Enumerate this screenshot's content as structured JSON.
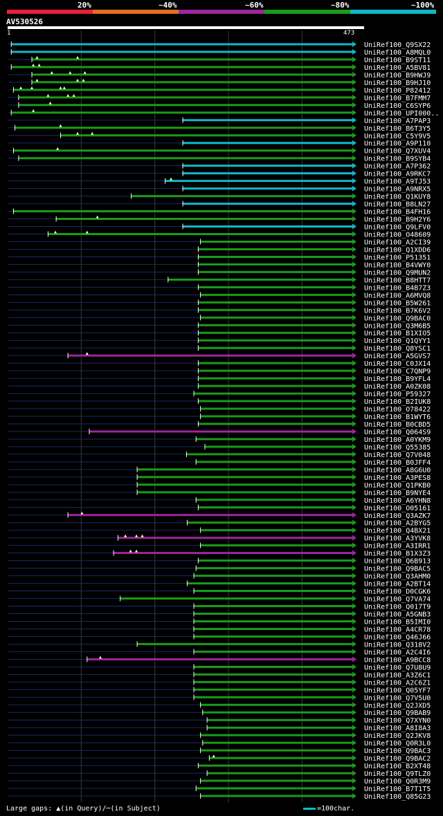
{
  "identity_scale": {
    "labels": [
      "20%",
      "~40%",
      "~60%",
      "~80%",
      "~100%"
    ],
    "colors": [
      "#e8203c",
      "#e07020",
      "#9c279c",
      "#1a9c1a",
      "#10b8c8"
    ]
  },
  "query": {
    "id": "AV530526",
    "start": "1",
    "end": "473",
    "length": 473
  },
  "legend": {
    "gaps_text": "Large gaps: ▲(in Query)/─(in Subject)",
    "scale_text": "=100char."
  },
  "chart_data": {
    "type": "alignment-map",
    "x_range": [
      1,
      473
    ],
    "hits": [
      {
        "name": "UniRef100_Q9SX22",
        "start": 5,
        "end": 473,
        "color": "#10b8c8",
        "gaps": []
      },
      {
        "name": "UniRef100_A8MQL0",
        "start": 5,
        "end": 473,
        "color": "#10b8c8",
        "gaps": []
      },
      {
        "name": "UniRef100_B9ST11",
        "start": 33,
        "end": 473,
        "color": "#1a9c1a",
        "gaps": [
          40,
          95
        ]
      },
      {
        "name": "UniRef100_A5BV81",
        "start": 5,
        "end": 473,
        "color": "#1a9c1a",
        "gaps": [
          35,
          43
        ]
      },
      {
        "name": "UniRef100_B9HWJ9",
        "start": 33,
        "end": 473,
        "color": "#1a9c1a",
        "gaps": [
          60,
          85,
          105
        ]
      },
      {
        "name": "UniRef100_B9HJ10",
        "start": 33,
        "end": 473,
        "color": "#1a9c1a",
        "gaps": [
          40,
          95,
          103
        ]
      },
      {
        "name": "UniRef100_P82412",
        "start": 8,
        "end": 473,
        "color": "#1a9c1a",
        "gaps": [
          18,
          33,
          72,
          77
        ]
      },
      {
        "name": "UniRef100_B7FMM7",
        "start": 15,
        "end": 473,
        "color": "#1a9c1a",
        "gaps": [
          55,
          82,
          90
        ]
      },
      {
        "name": "UniRef100_C6SYP6",
        "start": 15,
        "end": 473,
        "color": "#1a9c1a",
        "gaps": [
          58
        ]
      },
      {
        "name": "UniRef100_UPI000..",
        "start": 5,
        "end": 473,
        "color": "#1a9c1a",
        "gaps": [
          35
        ]
      },
      {
        "name": "UniRef100_A7PAP3",
        "start": 238,
        "end": 473,
        "color": "#10b8c8",
        "gaps": []
      },
      {
        "name": "UniRef100_B6T3Y5",
        "start": 10,
        "end": 473,
        "color": "#1a9c1a",
        "gaps": [
          72
        ]
      },
      {
        "name": "UniRef100_C5Y9V5",
        "start": 72,
        "end": 473,
        "color": "#1a9c1a",
        "gaps": [
          95,
          115
        ]
      },
      {
        "name": "UniRef100_A9P110",
        "start": 238,
        "end": 473,
        "color": "#10b8c8",
        "gaps": []
      },
      {
        "name": "UniRef100_Q7XUV4",
        "start": 8,
        "end": 473,
        "color": "#1a9c1a",
        "gaps": [
          68
        ]
      },
      {
        "name": "UniRef100_B9SYB4",
        "start": 15,
        "end": 473,
        "color": "#1a9c1a",
        "gaps": []
      },
      {
        "name": "UniRef100_A7P362",
        "start": 238,
        "end": 473,
        "color": "#10b8c8",
        "gaps": []
      },
      {
        "name": "UniRef100_A9RKC7",
        "start": 238,
        "end": 473,
        "color": "#10b8c8",
        "gaps": []
      },
      {
        "name": "UniRef100_A9TJ53",
        "start": 214,
        "end": 473,
        "color": "#10b8c8",
        "gaps": [
          222
        ]
      },
      {
        "name": "UniRef100_A9NRX5",
        "start": 238,
        "end": 473,
        "color": "#10b8c8",
        "gaps": []
      },
      {
        "name": "UniRef100_Q1KUY8",
        "start": 168,
        "end": 473,
        "color": "#1a9c1a",
        "gaps": []
      },
      {
        "name": "UniRef100_B8LN27",
        "start": 238,
        "end": 473,
        "color": "#10b8c8",
        "gaps": []
      },
      {
        "name": "UniRef100_B4FH16",
        "start": 8,
        "end": 473,
        "color": "#1a9c1a",
        "gaps": []
      },
      {
        "name": "UniRef100_B9H2Y6",
        "start": 66,
        "end": 473,
        "color": "#1a9c1a",
        "gaps": [
          122
        ]
      },
      {
        "name": "UniRef100_Q9LFV0",
        "start": 238,
        "end": 473,
        "color": "#10b8c8",
        "gaps": []
      },
      {
        "name": "UniRef100_O48609",
        "start": 55,
        "end": 473,
        "color": "#1a9c1a",
        "gaps": [
          65,
          108
        ]
      },
      {
        "name": "UniRef100_A2CI39",
        "start": 262,
        "end": 473,
        "color": "#1a9c1a",
        "gaps": []
      },
      {
        "name": "UniRef100_Q1XDD6",
        "start": 259,
        "end": 473,
        "color": "#1a9c1a",
        "gaps": []
      },
      {
        "name": "UniRef100_P51351",
        "start": 259,
        "end": 473,
        "color": "#1a9c1a",
        "gaps": []
      },
      {
        "name": "UniRef100_B4VWY0",
        "start": 259,
        "end": 473,
        "color": "#1a9c1a",
        "gaps": []
      },
      {
        "name": "UniRef100_Q9MUN2",
        "start": 259,
        "end": 473,
        "color": "#1a9c1a",
        "gaps": []
      },
      {
        "name": "UniRef100_B8HTT7",
        "start": 218,
        "end": 473,
        "color": "#1a9c1a",
        "gaps": []
      },
      {
        "name": "UniRef100_B4B7Z3",
        "start": 259,
        "end": 473,
        "color": "#1a9c1a",
        "gaps": []
      },
      {
        "name": "UniRef100_A6MVQ8",
        "start": 262,
        "end": 473,
        "color": "#1a9c1a",
        "gaps": []
      },
      {
        "name": "UniRef100_B5W261",
        "start": 259,
        "end": 473,
        "color": "#1a9c1a",
        "gaps": []
      },
      {
        "name": "UniRef100_B7K6V2",
        "start": 259,
        "end": 473,
        "color": "#1a9c1a",
        "gaps": []
      },
      {
        "name": "UniRef100_Q9BAC0",
        "start": 262,
        "end": 473,
        "color": "#1a9c1a",
        "gaps": []
      },
      {
        "name": "UniRef100_Q3M6B5",
        "start": 259,
        "end": 473,
        "color": "#1a9c1a",
        "gaps": []
      },
      {
        "name": "UniRef100_B1XIO5",
        "start": 259,
        "end": 473,
        "color": "#1a9c1a",
        "gaps": []
      },
      {
        "name": "UniRef100_Q1QYY1",
        "start": 259,
        "end": 473,
        "color": "#1a9c1a",
        "gaps": []
      },
      {
        "name": "UniRef100_Q8YSC1",
        "start": 259,
        "end": 473,
        "color": "#1a9c1a",
        "gaps": []
      },
      {
        "name": "UniRef100_A5GVS7",
        "start": 82,
        "end": 473,
        "color": "#9c279c",
        "gaps": [
          108
        ]
      },
      {
        "name": "UniRef100_C0JX14",
        "start": 259,
        "end": 473,
        "color": "#1a9c1a",
        "gaps": []
      },
      {
        "name": "UniRef100_C7QNP9",
        "start": 259,
        "end": 473,
        "color": "#1a9c1a",
        "gaps": []
      },
      {
        "name": "UniRef100_B9YFL4",
        "start": 259,
        "end": 473,
        "color": "#1a9c1a",
        "gaps": []
      },
      {
        "name": "UniRef100_A0ZK08",
        "start": 259,
        "end": 473,
        "color": "#1a9c1a",
        "gaps": []
      },
      {
        "name": "UniRef100_P59327",
        "start": 253,
        "end": 473,
        "color": "#1a9c1a",
        "gaps": []
      },
      {
        "name": "UniRef100_B2IUK8",
        "start": 259,
        "end": 473,
        "color": "#1a9c1a",
        "gaps": []
      },
      {
        "name": "UniRef100_O78422",
        "start": 262,
        "end": 473,
        "color": "#1a9c1a",
        "gaps": []
      },
      {
        "name": "UniRef100_B1WYT6",
        "start": 262,
        "end": 473,
        "color": "#1a9c1a",
        "gaps": []
      },
      {
        "name": "UniRef100_B0CBD5",
        "start": 259,
        "end": 473,
        "color": "#1a9c1a",
        "gaps": []
      },
      {
        "name": "UniRef100_Q064S9",
        "start": 111,
        "end": 473,
        "color": "#9c279c",
        "gaps": []
      },
      {
        "name": "UniRef100_A0YKM9",
        "start": 256,
        "end": 473,
        "color": "#1a9c1a",
        "gaps": []
      },
      {
        "name": "UniRef100_Q55385",
        "start": 268,
        "end": 473,
        "color": "#1a9c1a",
        "gaps": []
      },
      {
        "name": "UniRef100_Q7V048",
        "start": 243,
        "end": 473,
        "color": "#1a9c1a",
        "gaps": []
      },
      {
        "name": "UniRef100_B0JFF4",
        "start": 256,
        "end": 473,
        "color": "#1a9c1a",
        "gaps": []
      },
      {
        "name": "UniRef100_A8G6U0",
        "start": 176,
        "end": 473,
        "color": "#1a9c1a",
        "gaps": []
      },
      {
        "name": "UniRef100_A3PES8",
        "start": 176,
        "end": 473,
        "color": "#1a9c1a",
        "gaps": []
      },
      {
        "name": "UniRef100_Q1PKB0",
        "start": 176,
        "end": 473,
        "color": "#1a9c1a",
        "gaps": []
      },
      {
        "name": "UniRef100_B9NYE4",
        "start": 176,
        "end": 473,
        "color": "#1a9c1a",
        "gaps": []
      },
      {
        "name": "UniRef100_A6YHN8",
        "start": 256,
        "end": 473,
        "color": "#1a9c1a",
        "gaps": []
      },
      {
        "name": "UniRef100_O05161",
        "start": 259,
        "end": 473,
        "color": "#1a9c1a",
        "gaps": []
      },
      {
        "name": "UniRef100_Q3AZK7",
        "start": 82,
        "end": 473,
        "color": "#9c279c",
        "gaps": [
          101
        ]
      },
      {
        "name": "UniRef100_A2BYG5",
        "start": 244,
        "end": 473,
        "color": "#1a9c1a",
        "gaps": []
      },
      {
        "name": "UniRef100_Q4BX21",
        "start": 262,
        "end": 473,
        "color": "#1a9c1a",
        "gaps": []
      },
      {
        "name": "UniRef100_A3YVK8",
        "start": 150,
        "end": 473,
        "color": "#9c279c",
        "gaps": [
          160,
          175,
          183
        ]
      },
      {
        "name": "UniRef100_A3IRR1",
        "start": 262,
        "end": 473,
        "color": "#1a9c1a",
        "gaps": []
      },
      {
        "name": "UniRef100_B1X3Z3",
        "start": 144,
        "end": 473,
        "color": "#9c279c",
        "gaps": [
          167,
          175
        ]
      },
      {
        "name": "UniRef100_Q6B913",
        "start": 259,
        "end": 473,
        "color": "#1a9c1a",
        "gaps": []
      },
      {
        "name": "UniRef100_Q9BAC5",
        "start": 256,
        "end": 473,
        "color": "#1a9c1a",
        "gaps": []
      },
      {
        "name": "UniRef100_Q3AHM0",
        "start": 253,
        "end": 473,
        "color": "#1a9c1a",
        "gaps": []
      },
      {
        "name": "UniRef100_A2BT14",
        "start": 244,
        "end": 473,
        "color": "#1a9c1a",
        "gaps": []
      },
      {
        "name": "UniRef100_D0CGK6",
        "start": 253,
        "end": 473,
        "color": "#1a9c1a",
        "gaps": []
      },
      {
        "name": "UniRef100_Q7VA74",
        "start": 153,
        "end": 473,
        "color": "#1a9c1a",
        "gaps": []
      },
      {
        "name": "UniRef100_Q017T9",
        "start": 253,
        "end": 473,
        "color": "#1a9c1a",
        "gaps": []
      },
      {
        "name": "UniRef100_A5GNB3",
        "start": 253,
        "end": 473,
        "color": "#1a9c1a",
        "gaps": []
      },
      {
        "name": "UniRef100_B5IMI0",
        "start": 253,
        "end": 473,
        "color": "#1a9c1a",
        "gaps": []
      },
      {
        "name": "UniRef100_A4CR78",
        "start": 253,
        "end": 473,
        "color": "#1a9c1a",
        "gaps": []
      },
      {
        "name": "UniRef100_Q46J66",
        "start": 253,
        "end": 473,
        "color": "#1a9c1a",
        "gaps": []
      },
      {
        "name": "UniRef100_Q318V2",
        "start": 176,
        "end": 473,
        "color": "#1a9c1a",
        "gaps": []
      },
      {
        "name": "UniRef100_A2C4I6",
        "start": 253,
        "end": 473,
        "color": "#1a9c1a",
        "gaps": []
      },
      {
        "name": "UniRef100_A9BCC8",
        "start": 108,
        "end": 473,
        "color": "#9c279c",
        "gaps": [
          126
        ]
      },
      {
        "name": "UniRef100_Q7U8U9",
        "start": 253,
        "end": 473,
        "color": "#1a9c1a",
        "gaps": []
      },
      {
        "name": "UniRef100_A3Z6C1",
        "start": 253,
        "end": 473,
        "color": "#1a9c1a",
        "gaps": []
      },
      {
        "name": "UniRef100_A2C6Z1",
        "start": 253,
        "end": 473,
        "color": "#1a9c1a",
        "gaps": []
      },
      {
        "name": "UniRef100_Q05YF7",
        "start": 253,
        "end": 473,
        "color": "#1a9c1a",
        "gaps": []
      },
      {
        "name": "UniRef100_Q7V5U0",
        "start": 253,
        "end": 473,
        "color": "#1a9c1a",
        "gaps": []
      },
      {
        "name": "UniRef100_Q2JXD5",
        "start": 262,
        "end": 473,
        "color": "#1a9c1a",
        "gaps": []
      },
      {
        "name": "UniRef100_Q9BAB9",
        "start": 265,
        "end": 473,
        "color": "#1a9c1a",
        "gaps": []
      },
      {
        "name": "UniRef100_Q7XYN0",
        "start": 271,
        "end": 473,
        "color": "#1a9c1a",
        "gaps": []
      },
      {
        "name": "UniRef100_A8I8A3",
        "start": 271,
        "end": 473,
        "color": "#1a9c1a",
        "gaps": []
      },
      {
        "name": "UniRef100_Q2JKV8",
        "start": 262,
        "end": 473,
        "color": "#1a9c1a",
        "gaps": []
      },
      {
        "name": "UniRef100_Q0R3L0",
        "start": 265,
        "end": 473,
        "color": "#1a9c1a",
        "gaps": []
      },
      {
        "name": "UniRef100_Q9BAC3",
        "start": 262,
        "end": 473,
        "color": "#1a9c1a",
        "gaps": []
      },
      {
        "name": "UniRef100_Q9BAC2",
        "start": 274,
        "end": 473,
        "color": "#1a9c1a",
        "gaps": [
          280
        ]
      },
      {
        "name": "UniRef100_B2XT48",
        "start": 259,
        "end": 473,
        "color": "#1a9c1a",
        "gaps": []
      },
      {
        "name": "UniRef100_Q9TLZ0",
        "start": 271,
        "end": 473,
        "color": "#1a9c1a",
        "gaps": []
      },
      {
        "name": "UniRef100_Q0R3M9",
        "start": 262,
        "end": 473,
        "color": "#1a9c1a",
        "gaps": []
      },
      {
        "name": "UniRef100_B7T1T5",
        "start": 256,
        "end": 473,
        "color": "#1a9c1a",
        "gaps": []
      },
      {
        "name": "UniRef100_Q85G23",
        "start": 262,
        "end": 473,
        "color": "#1a9c1a",
        "gaps": []
      }
    ]
  }
}
